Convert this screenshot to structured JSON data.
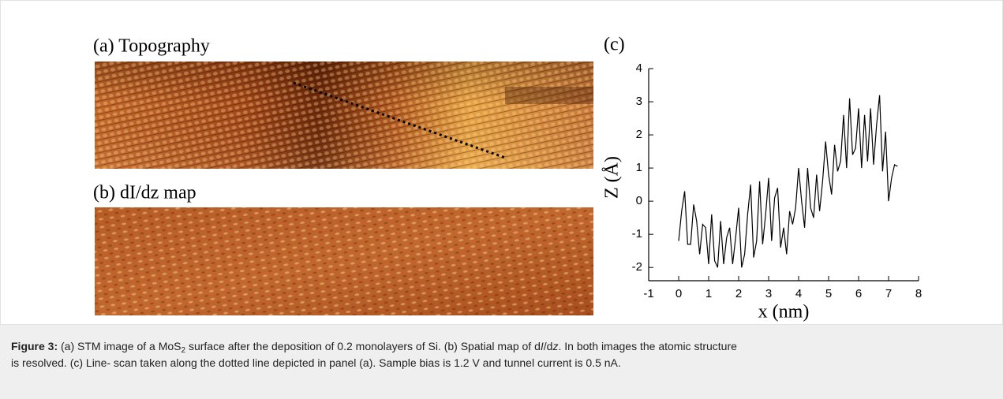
{
  "panels": {
    "a": "(a) Topography",
    "b": "(b) dI/dz map"
  },
  "chart_data": {
    "type": "line",
    "title": "(c)",
    "xlabel": "x (nm)",
    "ylabel": "Z (Å)",
    "xlim": [
      -1,
      8
    ],
    "ylim": [
      -2.4,
      4
    ],
    "xticks": [
      -1,
      0,
      1,
      2,
      3,
      4,
      5,
      6,
      7,
      8
    ],
    "yticks": [
      -2,
      -1,
      0,
      1,
      2,
      3,
      4
    ],
    "series": [
      {
        "color": "#000000",
        "x": [
          0.0,
          0.1,
          0.2,
          0.3,
          0.4,
          0.5,
          0.6,
          0.7,
          0.8,
          0.9,
          1.0,
          1.1,
          1.2,
          1.3,
          1.4,
          1.5,
          1.6,
          1.7,
          1.8,
          1.9,
          2.0,
          2.1,
          2.2,
          2.3,
          2.4,
          2.5,
          2.6,
          2.7,
          2.8,
          2.9,
          3.0,
          3.1,
          3.2,
          3.3,
          3.4,
          3.5,
          3.6,
          3.7,
          3.8,
          3.9,
          4.0,
          4.1,
          4.2,
          4.3,
          4.4,
          4.5,
          4.6,
          4.7,
          4.8,
          4.9,
          5.0,
          5.1,
          5.2,
          5.3,
          5.4,
          5.5,
          5.6,
          5.7,
          5.8,
          5.9,
          6.0,
          6.1,
          6.2,
          6.3,
          6.4,
          6.5,
          6.6,
          6.7,
          6.8,
          6.9,
          7.0,
          7.1,
          7.2,
          7.3
        ],
        "values": [
          -1.2,
          -0.3,
          0.3,
          -1.3,
          -1.3,
          -0.1,
          -0.6,
          -1.6,
          -0.7,
          -0.8,
          -1.9,
          -0.4,
          -1.8,
          -2.0,
          -0.6,
          -1.9,
          -1.1,
          -0.8,
          -1.9,
          -1.1,
          -0.2,
          -2.0,
          -1.6,
          -0.4,
          0.5,
          -1.7,
          -1.2,
          0.6,
          -1.3,
          -0.4,
          0.7,
          -1.2,
          0.1,
          0.4,
          -1.4,
          -0.8,
          -1.6,
          -0.3,
          -0.7,
          -0.2,
          1.0,
          0.0,
          -0.8,
          1.0,
          -0.2,
          -0.5,
          0.8,
          -0.3,
          0.6,
          1.8,
          0.8,
          0.2,
          1.7,
          0.9,
          1.2,
          2.6,
          1.0,
          3.1,
          1.4,
          1.6,
          2.8,
          1.0,
          2.6,
          1.2,
          2.8,
          1.1,
          2.3,
          3.2,
          0.9,
          2.1,
          0.0,
          0.7,
          1.1,
          1.05
        ]
      }
    ]
  },
  "caption": {
    "segments": [
      "Figure 3:",
      " (a) STM image of a MoS",
      "2",
      " surface after the deposition of 0.2 monolayers of Si. (b) Spatial map of d",
      "I",
      "/d",
      "z",
      ". In both images the atomic structure",
      "is resolved. (c) Line- scan taken along the dotted line depicted in panel (a). Sample bias is 1.2 V and tunnel current is 0.5 nA."
    ]
  }
}
